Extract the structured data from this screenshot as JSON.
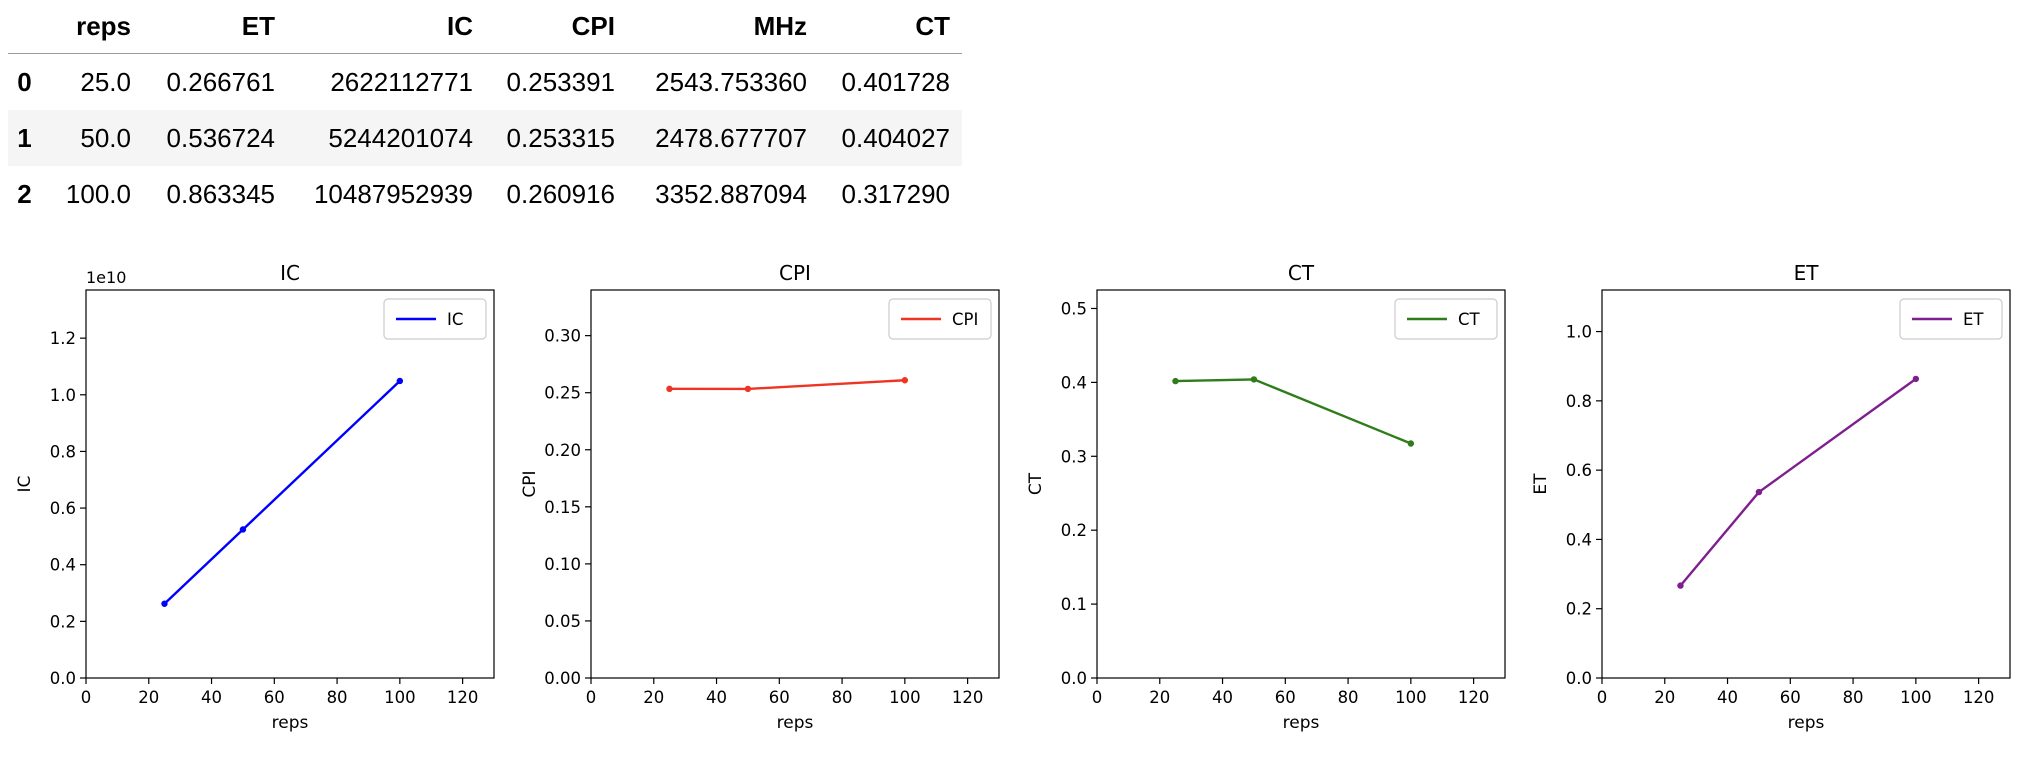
{
  "table": {
    "index_header": "",
    "columns": [
      "reps",
      "ET",
      "IC",
      "CPI",
      "MHz",
      "CT"
    ],
    "rows": [
      {
        "index": "0",
        "cells": [
          "25.0",
          "0.266761",
          "2622112771",
          "0.253391",
          "2543.753360",
          "0.401728"
        ]
      },
      {
        "index": "1",
        "cells": [
          "50.0",
          "0.536724",
          "5244201074",
          "0.253315",
          "2478.677707",
          "0.404027"
        ]
      },
      {
        "index": "2",
        "cells": [
          "100.0",
          "0.863345",
          "10487952939",
          "0.260916",
          "3352.887094",
          "0.317290"
        ]
      }
    ]
  },
  "chart_data": [
    {
      "type": "line",
      "title": "IC",
      "xlabel": "reps",
      "ylabel": "IC",
      "x": [
        25,
        50,
        100
      ],
      "series": [
        {
          "name": "IC",
          "values": [
            2622112771,
            5244201074,
            10487952939
          ],
          "color": "#0000ff"
        }
      ],
      "xlim": [
        0,
        130
      ],
      "ylim": [
        0,
        13700000000
      ],
      "xticks": [
        0,
        20,
        40,
        60,
        80,
        100,
        120
      ],
      "yticks": [
        0,
        2000000000,
        4000000000,
        6000000000,
        8000000000,
        10000000000,
        12000000000
      ],
      "ytick_labels": [
        "0.0",
        "0.2",
        "0.4",
        "0.6",
        "0.8",
        "1.0",
        "1.2"
      ],
      "offset_text": "1e10",
      "legend": "upper right",
      "grid": false
    },
    {
      "type": "line",
      "title": "CPI",
      "xlabel": "reps",
      "ylabel": "CPI",
      "x": [
        25,
        50,
        100
      ],
      "series": [
        {
          "name": "CPI",
          "values": [
            0.253391,
            0.253315,
            0.260916
          ],
          "color": "#ee3524"
        }
      ],
      "xlim": [
        0,
        130
      ],
      "ylim": [
        0,
        0.34
      ],
      "xticks": [
        0,
        20,
        40,
        60,
        80,
        100,
        120
      ],
      "yticks": [
        0,
        0.05,
        0.1,
        0.15,
        0.2,
        0.25,
        0.3
      ],
      "ytick_labels": [
        "0.00",
        "0.05",
        "0.10",
        "0.15",
        "0.20",
        "0.25",
        "0.30"
      ],
      "legend": "upper right",
      "grid": false
    },
    {
      "type": "line",
      "title": "CT",
      "xlabel": "reps",
      "ylabel": "CT",
      "x": [
        25,
        50,
        100
      ],
      "series": [
        {
          "name": "CT",
          "values": [
            0.401728,
            0.404027,
            0.31729
          ],
          "color": "#2e7d1a"
        }
      ],
      "xlim": [
        0,
        130
      ],
      "ylim": [
        0,
        0.525
      ],
      "xticks": [
        0,
        20,
        40,
        60,
        80,
        100,
        120
      ],
      "yticks": [
        0,
        0.1,
        0.2,
        0.3,
        0.4,
        0.5
      ],
      "ytick_labels": [
        "0.0",
        "0.1",
        "0.2",
        "0.3",
        "0.4",
        "0.5"
      ],
      "legend": "upper right",
      "grid": false
    },
    {
      "type": "line",
      "title": "ET",
      "xlabel": "reps",
      "ylabel": "ET",
      "x": [
        25,
        50,
        100
      ],
      "series": [
        {
          "name": "ET",
          "values": [
            0.266761,
            0.536724,
            0.863345
          ],
          "color": "#7f1f8f"
        }
      ],
      "xlim": [
        0,
        130
      ],
      "ylim": [
        0,
        1.12
      ],
      "xticks": [
        0,
        20,
        40,
        60,
        80,
        100,
        120
      ],
      "yticks": [
        0,
        0.2,
        0.4,
        0.6,
        0.8,
        1.0
      ],
      "ytick_labels": [
        "0.0",
        "0.2",
        "0.4",
        "0.6",
        "0.8",
        "1.0"
      ],
      "legend": "upper right",
      "grid": false
    }
  ]
}
